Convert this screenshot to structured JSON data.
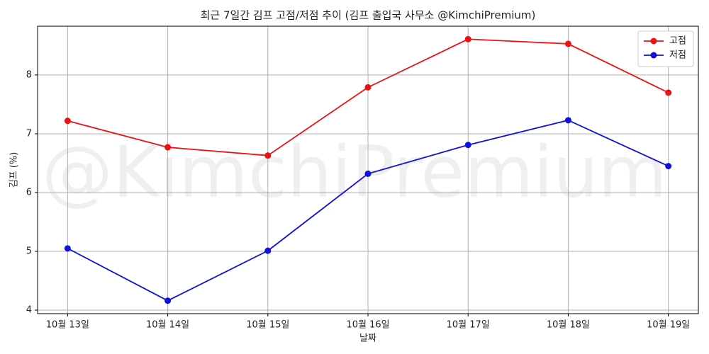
{
  "chart_data": {
    "type": "line",
    "title": "최근 7일간 김프 고점/저점 추이 (김프 출입국 사무소 @KimchiPremium)",
    "watermark": "@KimchiPremium",
    "x_label": "날짜",
    "y_label": "김프 (%)",
    "categories": [
      "10월 13일",
      "10월 14일",
      "10월 15일",
      "10월 16일",
      "10월 17일",
      "10월 18일",
      "10월 19일"
    ],
    "series": [
      {
        "name": "고점",
        "color": "#ee1111",
        "values": [
          7.22,
          6.77,
          6.63,
          7.79,
          8.61,
          8.53,
          7.7
        ]
      },
      {
        "name": "저점",
        "color": "#1111dd",
        "values": [
          5.05,
          4.16,
          5.01,
          6.32,
          6.81,
          7.23,
          6.45
        ]
      }
    ],
    "ylim": [
      3.94,
      8.83
    ],
    "yticks": [
      4,
      5,
      6,
      7,
      8
    ],
    "grid": true,
    "legend": "upper-right"
  }
}
